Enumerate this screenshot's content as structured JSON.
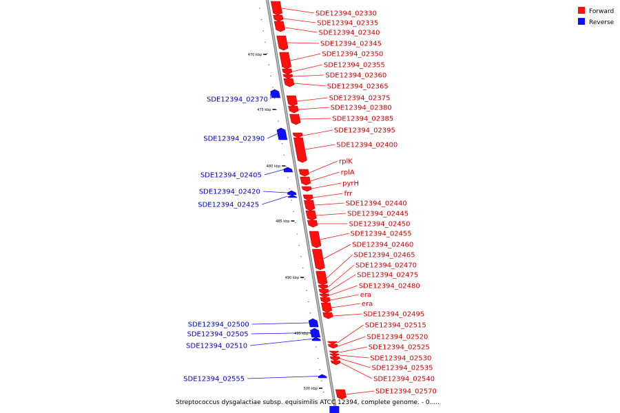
{
  "legend": [
    {
      "label": "Forward",
      "color": "#ff1010"
    },
    {
      "label": "Reverse",
      "color": "#1010ff"
    }
  ],
  "caption": "Streptococcus dysgalactiae subsp. equisimilis ATCC 12394, complete genome. - 0.....",
  "ticks": [
    "470 kbp",
    "475 kbp",
    "480 kbp",
    "485 kbp",
    "490 kbp",
    "495 kbp",
    "500 kbp"
  ],
  "forward_genes": [
    "SDE12394_02330",
    "SDE12394_02335",
    "SDE12394_02340",
    "SDE12394_02345",
    "SDE12394_02350",
    "SDE12394_02355",
    "SDE12394_02360",
    "SDE12394_02365",
    "SDE12394_02375",
    "SDE12394_02380",
    "SDE12394_02385",
    "SDE12394_02395",
    "SDE12394_02400",
    "rplK",
    "rplA",
    "pyrH",
    "frr",
    "SDE12394_02440",
    "SDE12394_02445",
    "SDE12394_02450",
    "SDE12394_02455",
    "SDE12394_02460",
    "SDE12394_02465",
    "SDE12394_02470",
    "SDE12394_02475",
    "SDE12394_02480",
    "era",
    "era",
    "SDE12394_02495",
    "SDE12394_02515",
    "SDE12394_02520",
    "SDE12394_02525",
    "SDE12394_02530",
    "SDE12394_02535",
    "SDE12394_02540",
    "SDE12394_02570"
  ],
  "reverse_genes": [
    "SDE12394_02370",
    "SDE12394_02390",
    "SDE12394_02405",
    "SDE12394_02420",
    "SDE12394_02425",
    "SDE12394_02500",
    "SDE12394_02505",
    "SDE12394_02510",
    "SDE12394_02555"
  ]
}
